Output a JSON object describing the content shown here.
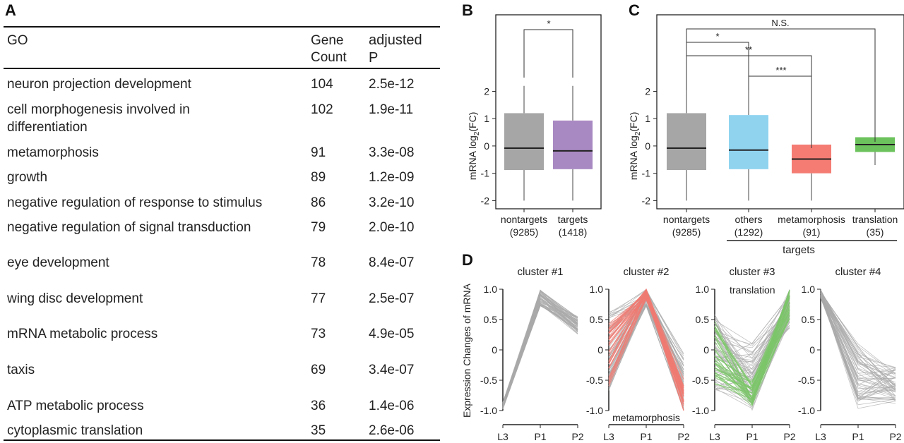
{
  "panels": {
    "a": "A",
    "b": "B",
    "c": "C",
    "d": "D"
  },
  "table": {
    "headers": {
      "go": "GO",
      "count_1": "Gene",
      "count_2": "Count",
      "p_1": "adjusted",
      "p_2": "P"
    },
    "rows": [
      {
        "term_1": "neuron projection development",
        "term_2": "",
        "count": "104",
        "p": "2.5e-12"
      },
      {
        "term_1": "cell morphogenesis involved in",
        "term_2": "differentiation",
        "count": "102",
        "p": "1.9e-11"
      },
      {
        "term_1": "metamorphosis",
        "term_2": "",
        "count": "91",
        "p": "3.3e-08"
      },
      {
        "term_1": "growth",
        "term_2": "",
        "count": "89",
        "p": "1.2e-09"
      },
      {
        "term_1": "negative regulation of response to stimulus",
        "term_2": "",
        "count": "86",
        "p": "3.2e-10"
      },
      {
        "term_1": "negative regulation of signal transduction",
        "term_2": "",
        "count": "79",
        "p": "2.0e-10"
      },
      {
        "term_1": "eye development",
        "term_2": "",
        "count": "78",
        "p": "8.4e-07"
      },
      {
        "term_1": "wing disc development",
        "term_2": "",
        "count": "77",
        "p": "2.5e-07"
      },
      {
        "term_1": "mRNA metabolic process",
        "term_2": "",
        "count": "73",
        "p": "4.9e-05"
      },
      {
        "term_1": "taxis",
        "term_2": "",
        "count": "69",
        "p": "3.4e-07"
      },
      {
        "term_1": "ATP metabolic process",
        "term_2": "",
        "count": "36",
        "p": "1.4e-06"
      },
      {
        "term_1": "cytoplasmic translation",
        "term_2": "",
        "count": "35",
        "p": "2.6e-06"
      }
    ]
  },
  "chart_data": [
    {
      "type": "box",
      "panel": "B",
      "ylabel_main": "mRNA log",
      "ylabel_sub": "2",
      "ylabel_end": "(FC)",
      "ylim": [
        -2.3,
        4.8
      ],
      "yticks": [
        -2,
        -1,
        0,
        1,
        2
      ],
      "boxes": [
        {
          "label": "nontargets",
          "n": "(9285)",
          "q1": -0.88,
          "median": -0.08,
          "q3": 1.2,
          "whisker_low": -2.0,
          "whisker_high": 2.2,
          "color": "#a6a6a6"
        },
        {
          "label": "targets",
          "n": "(1418)",
          "q1": -0.85,
          "median": -0.18,
          "q3": 0.93,
          "whisker_low": -2.0,
          "whisker_high": 2.2,
          "color": "#a989c2"
        }
      ],
      "comparisons": [
        {
          "from": 0,
          "to": 1,
          "label": "*"
        }
      ]
    },
    {
      "type": "box",
      "panel": "C",
      "ylabel_main": "mRNA log",
      "ylabel_sub": "2",
      "ylabel_end": "(FC)",
      "ylim": [
        -2.3,
        4.8
      ],
      "yticks": [
        -2,
        -1,
        0,
        1,
        2
      ],
      "group_label": "targets",
      "boxes": [
        {
          "label": "nontargets",
          "n": "(9285)",
          "q1": -0.88,
          "median": -0.08,
          "q3": 1.2,
          "whisker_low": -2.0,
          "whisker_high": 2.2,
          "color": "#a6a6a6"
        },
        {
          "label": "others",
          "n": "(1292)",
          "q1": -0.85,
          "median": -0.15,
          "q3": 1.13,
          "whisker_low": -2.0,
          "whisker_high": 2.2,
          "color": "#8fd3ef"
        },
        {
          "label": "metamorphosis",
          "n": "(91)",
          "q1": -1.0,
          "median": -0.48,
          "q3": 0.05,
          "whisker_low": -2.0,
          "whisker_high": 1.5,
          "color": "#f47c73"
        },
        {
          "label": "translation",
          "n": "(35)",
          "q1": -0.22,
          "median": 0.05,
          "q3": 0.32,
          "whisker_low": -0.7,
          "whisker_high": 0.75,
          "color": "#6cc25c"
        }
      ],
      "comparisons": [
        {
          "from": 0,
          "to": 3,
          "label": "N.S."
        },
        {
          "from": 0,
          "to": 1,
          "label": "*"
        },
        {
          "from": 0,
          "to": 2,
          "label": "**"
        },
        {
          "from": 1,
          "to": 2,
          "label": "***"
        }
      ]
    },
    {
      "type": "line",
      "panel": "D",
      "ylabel": "Expression Changes of mRNA",
      "x": [
        "L3",
        "P1",
        "P2"
      ],
      "ylim": [
        -1.0,
        1.0
      ],
      "yticks": [
        "1.0",
        "0.5",
        "0",
        "-0.5",
        "-1.0"
      ],
      "clusters": [
        {
          "title": "cluster #1",
          "bundle": [
            {
              "start": [
                -0.98,
                -0.86
              ],
              "mid": [
                0.72,
                1.0
              ],
              "end": [
                0.26,
                0.55
              ]
            }
          ],
          "highlight": null
        },
        {
          "title": "cluster #2",
          "bundle": [
            {
              "start": [
                -0.68,
                0.62
              ],
              "mid": [
                0.72,
                1.0
              ],
              "end": [
                -1.0,
                -0.05
              ]
            }
          ],
          "highlight": {
            "label": "metamorphosis",
            "label_pos": "bottom",
            "color": "#f07b72",
            "start": [
              -0.62,
              0.45
            ],
            "mid": [
              0.82,
              1.0
            ],
            "end": [
              -1.0,
              -0.48
            ]
          }
        },
        {
          "title": "cluster #3",
          "bundle": [
            {
              "start": [
                -0.68,
                0.6
              ],
              "mid": [
                -1.0,
                0.15
              ],
              "end": [
                0.3,
                1.0
              ]
            }
          ],
          "highlight": {
            "label": "translation",
            "label_pos": "top",
            "color": "#7cc66a",
            "start": [
              -0.6,
              0.48
            ],
            "mid": [
              -0.92,
              -0.48
            ],
            "end": [
              0.5,
              1.0
            ]
          }
        },
        {
          "title": "cluster #4",
          "bundle": [
            {
              "start": [
                0.85,
                1.0
              ],
              "mid": [
                -1.0,
                0.1
              ],
              "end": [
                -0.9,
                -0.28
              ]
            }
          ],
          "highlight": null
        }
      ]
    }
  ]
}
